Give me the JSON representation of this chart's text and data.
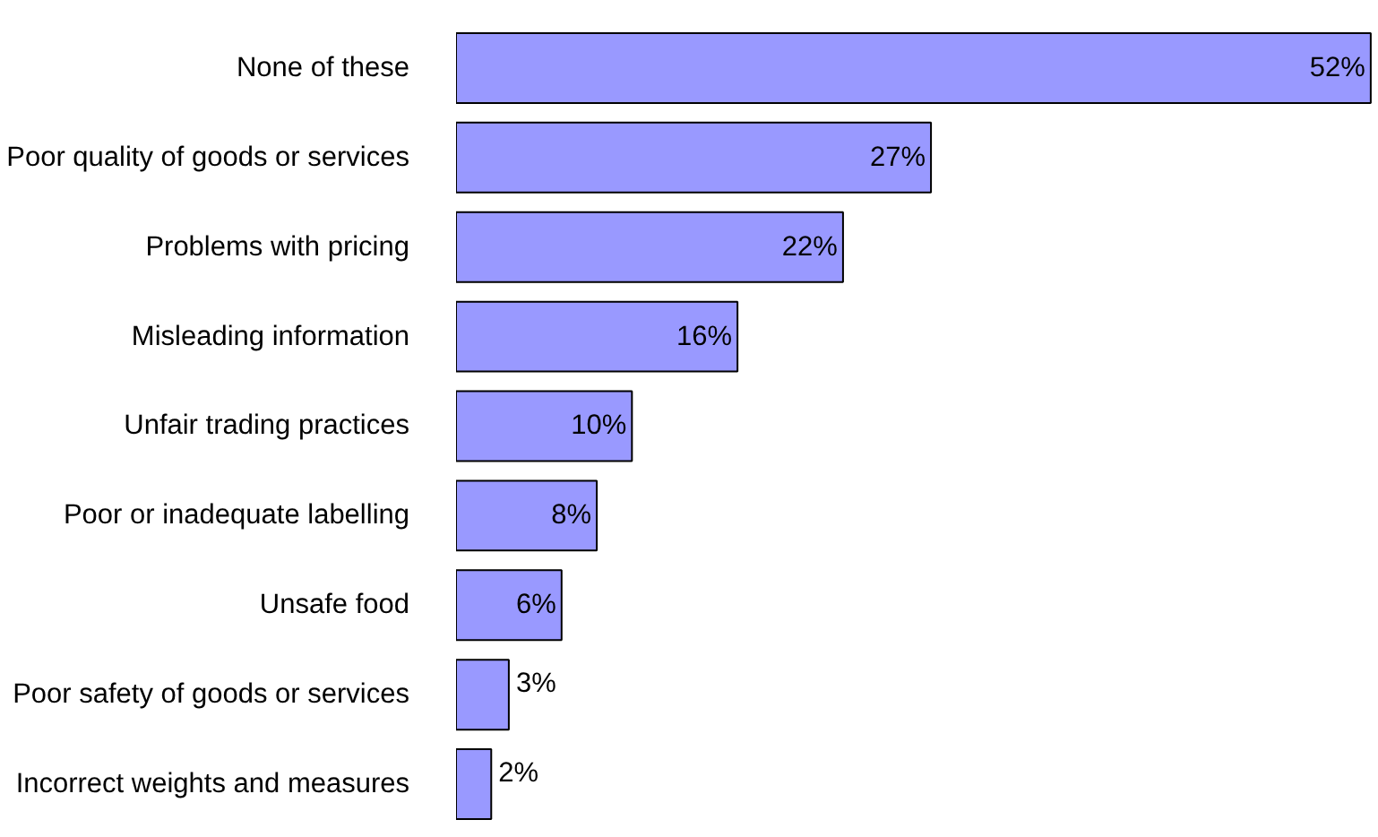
{
  "chart_data": {
    "type": "bar",
    "orientation": "horizontal",
    "categories": [
      "None of these",
      "Poor quality of goods or services",
      "Problems with pricing",
      "Misleading information",
      "Unfair trading practices",
      "Poor or inadequate labelling",
      "Unsafe food",
      "Poor safety of goods or services",
      "Incorrect weights and measures"
    ],
    "values": [
      52,
      27,
      22,
      16,
      10,
      8,
      6,
      3,
      2
    ],
    "value_labels": [
      "52%",
      "27%",
      "22%",
      "16%",
      "10%",
      "8%",
      "6%",
      "3%",
      "2%"
    ],
    "color": "#9999ff",
    "grid": false,
    "tick_labels": "y"
  }
}
